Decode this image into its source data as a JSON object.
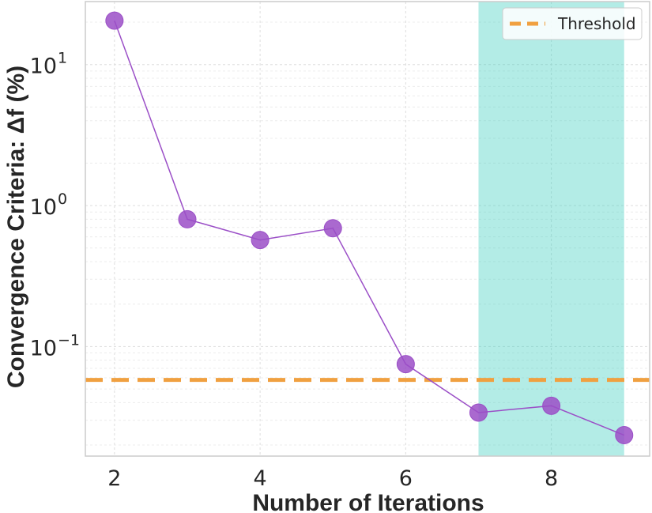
{
  "chart_data": {
    "type": "line",
    "xlabel": "Number of Iterations",
    "ylabel": "Convergence Criteria: Δf (%)",
    "y_scale": "log",
    "xlim": [
      1.6,
      9.35
    ],
    "ylim": [
      0.0167,
      28
    ],
    "x_ticks": [
      2,
      4,
      6,
      8
    ],
    "y_ticks": [
      0.1,
      1,
      10
    ],
    "y_tick_labels": [
      {
        "value": 0.1,
        "base": "10",
        "exp": "−1"
      },
      {
        "value": 1,
        "base": "10",
        "exp": "0"
      },
      {
        "value": 10,
        "base": "10",
        "exp": "1"
      }
    ],
    "grid": true,
    "series": [
      {
        "x": [
          2,
          3,
          4,
          5,
          6,
          7,
          8,
          9
        ],
        "y": [
          20.5,
          0.8,
          0.57,
          0.69,
          0.075,
          0.034,
          0.038,
          0.0235
        ],
        "color": "#9b4fc7"
      }
    ],
    "threshold": {
      "value": 0.058,
      "label": "Threshold",
      "color": "#f0a040"
    },
    "shaded_region": {
      "x_start": 7,
      "x_end": 9,
      "color": "#40d0c0"
    },
    "legend": {
      "position": "top-right",
      "entries": [
        "Threshold"
      ]
    }
  }
}
